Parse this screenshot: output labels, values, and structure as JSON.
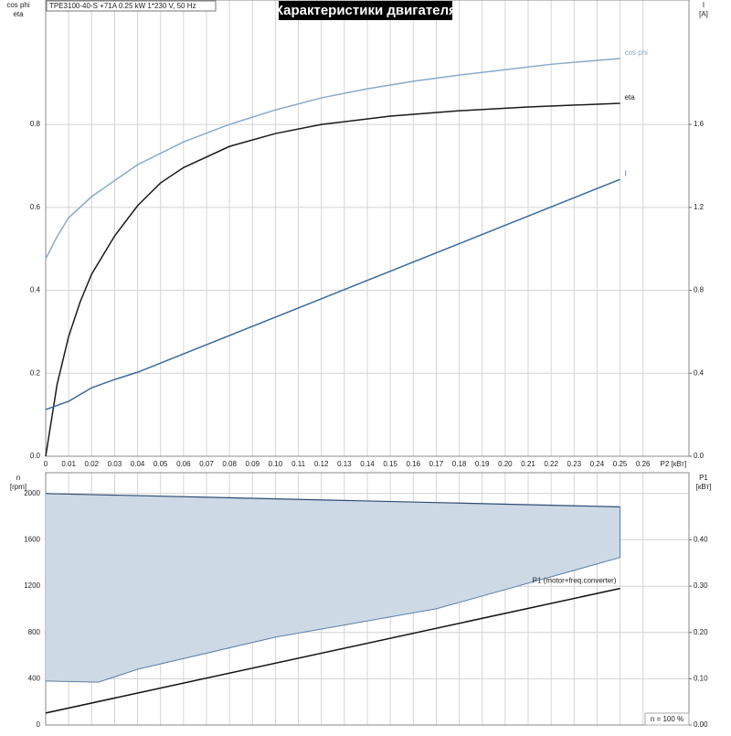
{
  "chart_data": [
    {
      "type": "line",
      "header": "TPE3100-40-S +71A   0.25 kW   1*230 V, 50 Hz",
      "title": "Характеристики двигателя",
      "x_label": "P2 [кВт]",
      "y_label": [
        "cos phi",
        "eta"
      ],
      "y2_label": [
        "I",
        "[A]"
      ],
      "xlim": [
        0,
        0.28
      ],
      "xticks": [
        0,
        0.01,
        0.02,
        0.03,
        0.04,
        0.05,
        0.06,
        0.07,
        0.08,
        0.09,
        {
          "value": 0.1,
          "label": "0.10"
        },
        0.11,
        0.12,
        0.13,
        0.14,
        0.15,
        0.16,
        0.17,
        0.18,
        0.19,
        {
          "value": 0.2,
          "label": "0.20"
        },
        0.21,
        0.22,
        0.23,
        0.24,
        0.25,
        0.26
      ],
      "ylim": [
        0,
        1.1
      ],
      "yticks": [
        {
          "value": 0,
          "label": "0.0"
        },
        0.2,
        0.4,
        0.6,
        0.8
      ],
      "y2lim": [
        0,
        2.2
      ],
      "y2ticks": [
        {
          "value": 0,
          "label": "0.0"
        },
        0.4,
        0.8,
        1.2,
        1.6
      ],
      "grid": true,
      "series": [
        {
          "name": "cos phi",
          "color": "#8aa9c8",
          "x": [
            0,
            0.005,
            0.01,
            0.02,
            0.04,
            0.06,
            0.08,
            0.1,
            0.12,
            0.14,
            0.16,
            0.18,
            0.2,
            0.22,
            0.25
          ],
          "values": [
            0.476,
            0.53,
            0.575,
            0.626,
            0.703,
            0.758,
            0.8,
            0.835,
            0.864,
            0.886,
            0.904,
            0.919,
            0.932,
            0.945,
            0.959
          ]
        },
        {
          "name": "eta",
          "color": "#1a1a1a",
          "x": [
            0,
            0.005,
            0.01,
            0.015,
            0.02,
            0.03,
            0.04,
            0.05,
            0.06,
            0.08,
            0.1,
            0.12,
            0.15,
            0.18,
            0.21,
            0.25
          ],
          "values": [
            0,
            0.174,
            0.289,
            0.372,
            0.439,
            0.531,
            0.604,
            0.659,
            0.696,
            0.747,
            0.778,
            0.8,
            0.82,
            0.833,
            0.842,
            0.851
          ]
        },
        {
          "name": "I",
          "color": "#3c6a9b",
          "axis": "y2",
          "x": [
            0,
            0.01,
            0.02,
            0.03,
            0.04,
            0.25
          ],
          "values": [
            0.225,
            0.265,
            0.33,
            0.37,
            0.405,
            1.335
          ]
        }
      ]
    },
    {
      "type": "area",
      "y_label": [
        "n",
        "[rpm]"
      ],
      "y2_label": [
        "P1",
        "[кВт]"
      ],
      "note": "n = 100 %",
      "xlim": [
        0,
        0.28
      ],
      "ylim": [
        0,
        2180
      ],
      "yticks": [
        0,
        400,
        800,
        1200,
        1600,
        2000
      ],
      "y2lim": [
        0,
        0.545
      ],
      "y2ticks": [
        {
          "value": 0,
          "label": "0.00"
        },
        {
          "value": 0.1,
          "label": "0.10"
        },
        {
          "value": 0.2,
          "label": "0.20"
        },
        {
          "value": 0.3,
          "label": "0.30"
        },
        {
          "value": 0.4,
          "label": "0.40"
        }
      ],
      "grid": true,
      "band": {
        "color": "#cdd9e5",
        "edge": "#5b7fa6",
        "x": [
          0,
          0.023,
          0.04,
          0.1,
          0.17,
          0.25
        ],
        "upper": [
          2000,
          1989,
          1982,
          1954,
          1922,
          1885
        ],
        "lower": [
          380,
          370,
          482,
          759,
          1004,
          1447
        ]
      },
      "series": [
        {
          "name": "P1 (motor+freq.converter)",
          "color": "#111111",
          "axis": "y2",
          "x": [
            0,
            0.25
          ],
          "values": [
            0.026,
            0.295
          ]
        }
      ]
    }
  ]
}
